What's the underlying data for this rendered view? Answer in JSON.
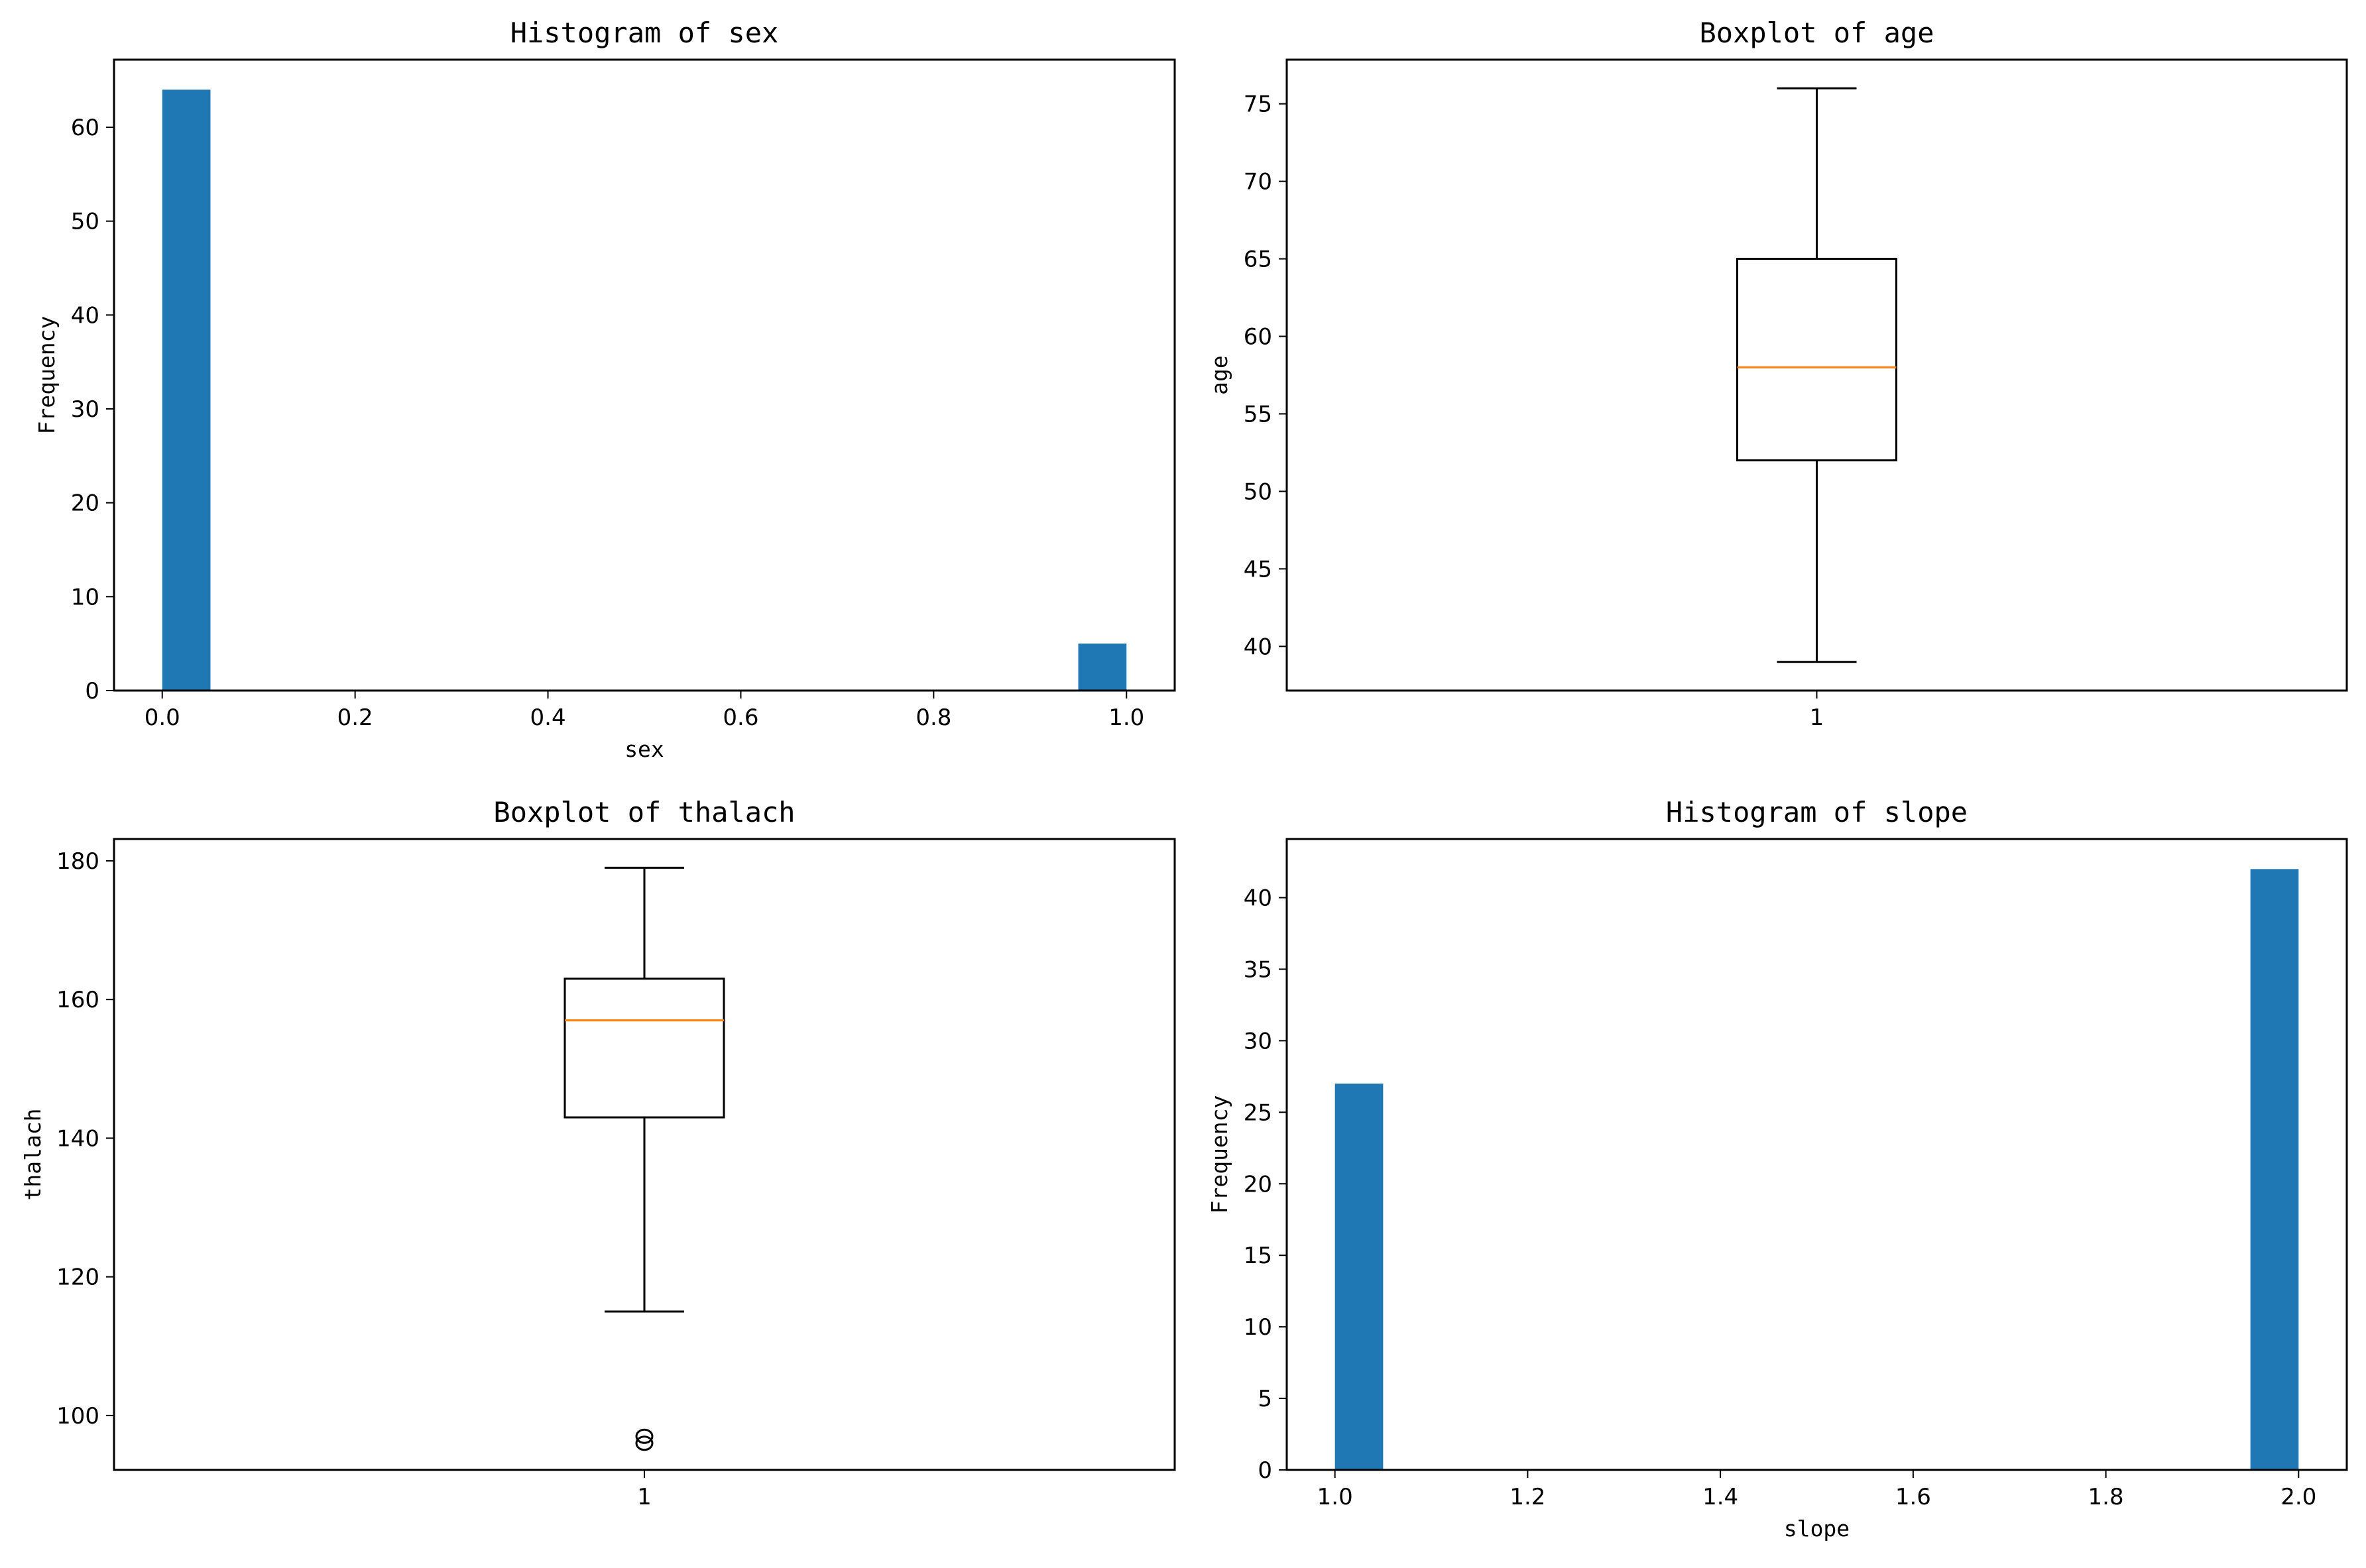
{
  "chart_data": [
    {
      "type": "bar",
      "id": "sex",
      "title": "Histogram of sex",
      "xlabel": "sex",
      "ylabel": "Frequency",
      "bins": [
        {
          "x0": 0.0,
          "x1": 0.05,
          "count": 64
        },
        {
          "x0": 0.95,
          "x1": 1.0,
          "count": 5
        }
      ],
      "xlim": [
        -0.05,
        1.05
      ],
      "ylim": [
        0,
        67.2
      ],
      "xticks": [
        0.0,
        0.2,
        0.4,
        0.6,
        0.8,
        1.0
      ],
      "xtick_labels": [
        "0.0",
        "0.2",
        "0.4",
        "0.6",
        "0.8",
        "1.0"
      ],
      "yticks": [
        0,
        10,
        20,
        30,
        40,
        50,
        60
      ],
      "ytick_labels": [
        "0",
        "10",
        "20",
        "30",
        "40",
        "50",
        "60"
      ],
      "color": "#1f77b4"
    },
    {
      "type": "boxplot",
      "id": "age",
      "title": "Boxplot of age",
      "xlabel": "",
      "ylabel": "age",
      "category": "1",
      "whisker_low": 39,
      "q1": 52,
      "median": 58,
      "q3": 65,
      "whisker_high": 76,
      "outliers": [],
      "ylim": [
        37.15,
        77.85
      ],
      "yticks": [
        40,
        45,
        50,
        55,
        60,
        65,
        70,
        75
      ],
      "ytick_labels": [
        "40",
        "45",
        "50",
        "55",
        "60",
        "65",
        "70",
        "75"
      ],
      "median_color": "#ff7f0e"
    },
    {
      "type": "boxplot",
      "id": "thalach",
      "title": "Boxplot of thalach",
      "xlabel": "",
      "ylabel": "thalach",
      "category": "1",
      "whisker_low": 115,
      "q1": 143,
      "median": 157,
      "q3": 163,
      "whisker_high": 179,
      "outliers": [
        96,
        97
      ],
      "ylim": [
        92.15,
        183.15
      ],
      "yticks": [
        100,
        120,
        140,
        160,
        180
      ],
      "ytick_labels": [
        "100",
        "120",
        "140",
        "160",
        "180"
      ],
      "median_color": "#ff7f0e"
    },
    {
      "type": "bar",
      "id": "slope",
      "title": "Histogram of slope",
      "xlabel": "slope",
      "ylabel": "Frequency",
      "bins": [
        {
          "x0": 1.0,
          "x1": 1.05,
          "count": 27
        },
        {
          "x0": 1.95,
          "x1": 2.0,
          "count": 42
        }
      ],
      "xlim": [
        0.95,
        2.05
      ],
      "ylim": [
        0,
        44.1
      ],
      "xticks": [
        1.0,
        1.2,
        1.4,
        1.6,
        1.8,
        2.0
      ],
      "xtick_labels": [
        "1.0",
        "1.2",
        "1.4",
        "1.6",
        "1.8",
        "2.0"
      ],
      "yticks": [
        0,
        5,
        10,
        15,
        20,
        25,
        30,
        35,
        40
      ],
      "ytick_labels": [
        "0",
        "5",
        "10",
        "15",
        "20",
        "25",
        "30",
        "35",
        "40"
      ],
      "color": "#1f77b4"
    }
  ]
}
